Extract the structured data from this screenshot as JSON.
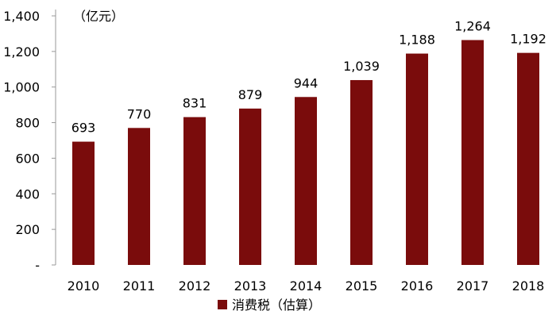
{
  "colors": {
    "bar": "#7a0c0c",
    "axis": "#999999",
    "text": "#000000"
  },
  "chart_data": {
    "type": "bar",
    "categories": [
      "2010",
      "2011",
      "2012",
      "2013",
      "2014",
      "2015",
      "2016",
      "2017",
      "2018"
    ],
    "series": [
      {
        "name": "消费税（估算）",
        "values": [
          693,
          770,
          831,
          879,
          944,
          1039,
          1188,
          1264,
          1192
        ]
      }
    ],
    "data_labels": [
      "693",
      "770",
      "831",
      "879",
      "944",
      "1,039",
      "1,188",
      "1,264",
      "1,192"
    ],
    "y_ticks": [
      {
        "value": 0,
        "label": "-"
      },
      {
        "value": 200,
        "label": "200"
      },
      {
        "value": 400,
        "label": "400"
      },
      {
        "value": 600,
        "label": "600"
      },
      {
        "value": 800,
        "label": "800"
      },
      {
        "value": 1000,
        "label": "1,000"
      },
      {
        "value": 1200,
        "label": "1,200"
      },
      {
        "value": 1400,
        "label": "1,400"
      }
    ],
    "ylim": [
      0,
      1400
    ],
    "unit_label": "（亿元）",
    "title": "",
    "xlabel": "",
    "ylabel": "",
    "grid": false,
    "legend_position": "bottom"
  }
}
